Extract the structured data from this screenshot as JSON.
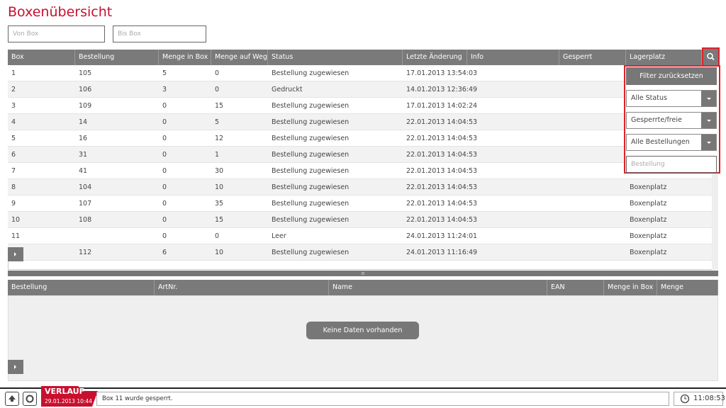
{
  "header": {
    "title": "Boxenübersicht",
    "from_placeholder": "Von Box",
    "to_placeholder": "Bis Box"
  },
  "table": {
    "columns": [
      "Box",
      "Bestellung",
      "Menge in Box",
      "Menge auf Weg",
      "Status",
      "Letzte Änderung",
      "Info",
      "Gesperrt",
      "Lagerplatz"
    ],
    "rows": [
      [
        "1",
        "105",
        "5",
        "0",
        "Bestellung zugewiesen",
        "17.01.2013 13:54:03",
        null
      ],
      [
        "2",
        "106",
        "3",
        "0",
        "Gedruckt",
        "14.01.2013 12:36:49",
        null
      ],
      [
        "3",
        "109",
        "0",
        "15",
        "Bestellung zugewiesen",
        "17.01.2013 14:02:24",
        null
      ],
      [
        "4",
        "14",
        "0",
        "5",
        "Bestellung zugewiesen",
        "22.01.2013 14:04:53",
        null
      ],
      [
        "5",
        "16",
        "0",
        "12",
        "Bestellung zugewiesen",
        "22.01.2013 14:04:53",
        null
      ],
      [
        "6",
        "31",
        "0",
        "1",
        "Bestellung zugewiesen",
        "22.01.2013 14:04:53",
        null
      ],
      [
        "7",
        "41",
        "0",
        "30",
        "Bestellung zugewiesen",
        "22.01.2013 14:04:53",
        null
      ],
      [
        "8",
        "104",
        "0",
        "10",
        "Bestellung zugewiesen",
        "22.01.2013 14:04:53",
        "Boxenplatz"
      ],
      [
        "9",
        "107",
        "0",
        "35",
        "Bestellung zugewiesen",
        "22.01.2013 14:04:53",
        "Boxenplatz"
      ],
      [
        "10",
        "108",
        "0",
        "15",
        "Bestellung zugewiesen",
        "22.01.2013 14:04:53",
        "Boxenplatz"
      ],
      [
        "11",
        null,
        "0",
        "0",
        "Leer",
        "24.01.2013 11:24:01",
        "Boxenplatz"
      ],
      [
        null,
        "112",
        "6",
        "10",
        "Bestellung zugewiesen",
        "24.01.2013 11:16:49",
        "Boxenplatz"
      ]
    ]
  },
  "filter": {
    "reset": "Filter zurücksetzen",
    "status": "Alle Status",
    "locked": "Gesperrte/freie",
    "orders": "Alle Bestellungen",
    "order_placeholder": "Bestellung"
  },
  "detail": {
    "columns": [
      "Bestellung",
      "ArtNr.",
      "Name",
      "EAN",
      "Menge in Box",
      "Menge reserviert"
    ],
    "empty": "Keine Daten vorhanden"
  },
  "footer": {
    "history": "VERLAUF",
    "history_date": "29.01.2013 10:44",
    "message": "Box 11 wurde gesperrt.",
    "clock": "11:08:53"
  }
}
